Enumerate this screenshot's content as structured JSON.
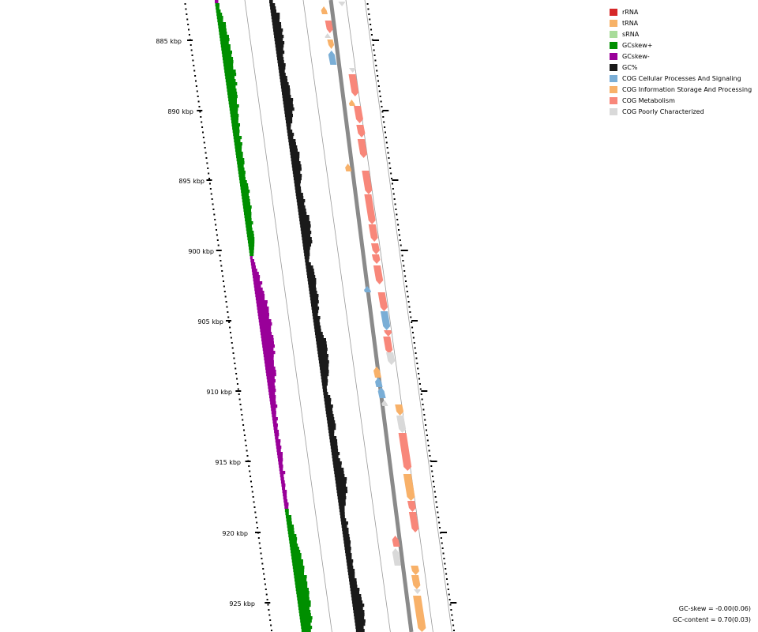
{
  "scale": {
    "tick_labels": [
      "885 kbp",
      "890 kbp",
      "895 kbp",
      "900 kbp",
      "905 kbp",
      "910 kbp",
      "915 kbp",
      "920 kbp",
      "925 kbp"
    ]
  },
  "legend": {
    "items": [
      {
        "label": "rRNA",
        "color": "#d62728"
      },
      {
        "label": "tRNA",
        "color": "#f7b267"
      },
      {
        "label": "sRNA",
        "color": "#a8dc9a"
      },
      {
        "label": "GCskew+",
        "color": "#008f00"
      },
      {
        "label": "GCskew-",
        "color": "#990099"
      },
      {
        "label": "GC%",
        "color": "#1a1a1a"
      },
      {
        "label": "COG Cellular Processes And Signaling",
        "color": "#7aaed6"
      },
      {
        "label": "COG Information Storage And Processing",
        "color": "#f8b169"
      },
      {
        "label": "COG Metabolism",
        "color": "#f8877a"
      },
      {
        "label": "COG Poorly Characterized",
        "color": "#d9d9d9"
      }
    ]
  },
  "stats": {
    "gc_skew": "GC-skew = -0.00(0.06)",
    "gc_content": "GC-content = 0.70(0.03)"
  }
}
